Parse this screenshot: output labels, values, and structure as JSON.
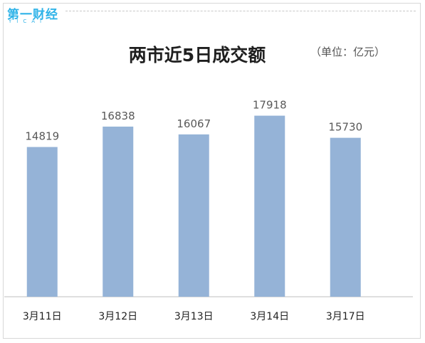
{
  "brand": {
    "logo_text": "第一财经",
    "logo_sub": "YICAI",
    "color": "#2fb3e8"
  },
  "chart_data": {
    "type": "bar",
    "title": "两市近5日成交额",
    "unit_note": "（单位：亿元）",
    "categories": [
      "3月11日",
      "3月12日",
      "3月13日",
      "3月14日",
      "3月17日"
    ],
    "series": [
      {
        "values": [
          14819,
          16838,
          16067,
          17918,
          15730
        ]
      }
    ],
    "ylim": [
      0,
      20000
    ],
    "grid": false,
    "legend": "none",
    "bar_color": "#95b3d7"
  }
}
